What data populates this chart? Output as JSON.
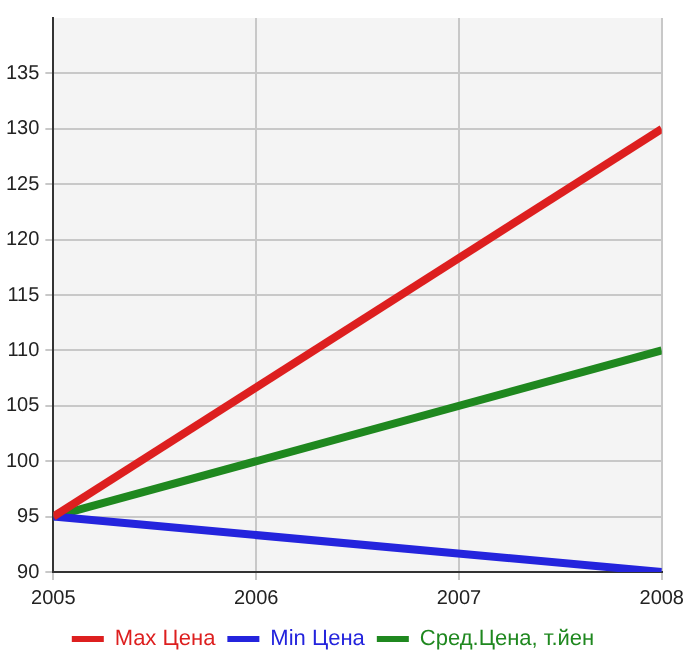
{
  "chart_data": {
    "type": "line",
    "x": [
      2005,
      2008
    ],
    "xlim": [
      2005,
      2008
    ],
    "xticks": [
      2005,
      2006,
      2007,
      2008
    ],
    "ylim": [
      90,
      140
    ],
    "yticks": [
      90,
      95,
      100,
      105,
      110,
      115,
      120,
      125,
      130,
      135
    ],
    "grid": true,
    "legend": "bottom",
    "marker": "none",
    "line_style": "solid",
    "series": [
      {
        "name": "Max Цена",
        "color": "#dd1f1f",
        "values": [
          95,
          130
        ]
      },
      {
        "name": "Min Цена",
        "color": "#2424dd",
        "values": [
          95,
          90
        ]
      },
      {
        "name": "Сред.Цена, т.йен",
        "color": "#1f881f",
        "values": [
          95,
          110
        ]
      }
    ]
  }
}
